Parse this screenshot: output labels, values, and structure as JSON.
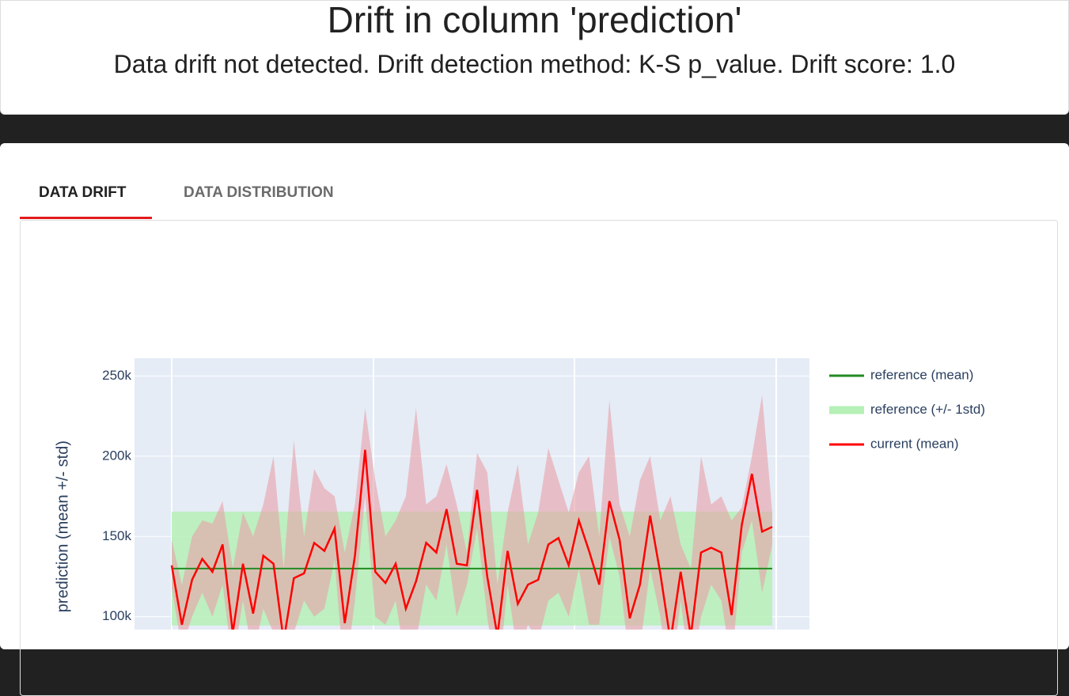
{
  "header": {
    "title": "Drift in column 'prediction'",
    "subtitle": "Data drift not detected. Drift detection method: K-S p_value. Drift score: 1.0"
  },
  "tabs": [
    "DATA DRIFT",
    "DATA DISTRIBUTION"
  ],
  "chart_data": {
    "type": "line",
    "y_label": "prediction (mean +/- std)",
    "categories": [
      null,
      null,
      null,
      null,
      null,
      null,
      null,
      null,
      null,
      null,
      null,
      null,
      null,
      null,
      null,
      null,
      null,
      null,
      null,
      null,
      null,
      null,
      null,
      null,
      null,
      null,
      null,
      null,
      null,
      null,
      null,
      null,
      null,
      null,
      null,
      null,
      null,
      null,
      null,
      null,
      null,
      null,
      null,
      null,
      null,
      null,
      null,
      null,
      null,
      null,
      null,
      null,
      null,
      null,
      null,
      null,
      null,
      null,
      null,
      null
    ],
    "ylim": [
      92000,
      261000
    ],
    "yticks": [
      {
        "value": 100000,
        "label": "100k"
      },
      {
        "value": 150000,
        "label": "150k"
      },
      {
        "value": 200000,
        "label": "200k"
      },
      {
        "value": 250000,
        "label": "250k"
      }
    ],
    "grid": true,
    "series": [
      {
        "name": "reference (mean)",
        "color": "#228b22",
        "values": [
          130000,
          130000,
          130000,
          130000,
          130000,
          130000,
          130000,
          130000,
          130000,
          130000,
          130000,
          130000,
          130000,
          130000,
          130000,
          130000,
          130000,
          130000,
          130000,
          130000,
          130000,
          130000,
          130000,
          130000,
          130000,
          130000,
          130000,
          130000,
          130000,
          130000,
          130000,
          130000,
          130000,
          130000,
          130000,
          130000,
          130000,
          130000,
          130000,
          130000,
          130000,
          130000,
          130000,
          130000,
          130000,
          130000,
          130000,
          130000,
          130000,
          130000,
          130000,
          130000,
          130000,
          130000,
          130000,
          130000,
          130000,
          130000,
          130000,
          130000
        ]
      },
      {
        "name": "reference (+/- 1std)",
        "color": "#b6f0b6",
        "upper": [
          165500,
          165500,
          165500,
          165500,
          165500,
          165500,
          165500,
          165500,
          165500,
          165500,
          165500,
          165500,
          165500,
          165500,
          165500,
          165500,
          165500,
          165500,
          165500,
          165500,
          165500,
          165500,
          165500,
          165500,
          165500,
          165500,
          165500,
          165500,
          165500,
          165500,
          165500,
          165500,
          165500,
          165500,
          165500,
          165500,
          165500,
          165500,
          165500,
          165500,
          165500,
          165500,
          165500,
          165500,
          165500,
          165500,
          165500,
          165500,
          165500,
          165500,
          165500,
          165500,
          165500,
          165500,
          165500,
          165500,
          165500,
          165500,
          165500,
          165500
        ],
        "lower": [
          94500,
          94500,
          94500,
          94500,
          94500,
          94500,
          94500,
          94500,
          94500,
          94500,
          94500,
          94500,
          94500,
          94500,
          94500,
          94500,
          94500,
          94500,
          94500,
          94500,
          94500,
          94500,
          94500,
          94500,
          94500,
          94500,
          94500,
          94500,
          94500,
          94500,
          94500,
          94500,
          94500,
          94500,
          94500,
          94500,
          94500,
          94500,
          94500,
          94500,
          94500,
          94500,
          94500,
          94500,
          94500,
          94500,
          94500,
          94500,
          94500,
          94500,
          94500,
          94500,
          94500,
          94500,
          94500,
          94500,
          94500,
          94500,
          94500,
          94500
        ]
      },
      {
        "name": "current (mean)",
        "color": "#ff0000",
        "values": [
          132000,
          95000,
          123000,
          136000,
          128000,
          145000,
          90000,
          133000,
          102000,
          138000,
          133000,
          85000,
          124000,
          127000,
          146000,
          141000,
          155000,
          96000,
          138000,
          204000,
          128000,
          121000,
          133000,
          105000,
          122000,
          146000,
          140000,
          167000,
          133000,
          132000,
          179000,
          125000,
          88000,
          141000,
          108000,
          120000,
          123000,
          145000,
          149000,
          132000,
          160000,
          141000,
          120000,
          172000,
          148000,
          99000,
          120000,
          163000,
          127000,
          85000,
          128000,
          88000,
          140000,
          143000,
          140000,
          101000,
          157000,
          189000,
          153000,
          156000
        ]
      }
    ],
    "current_band": {
      "color": "#e8a0a8",
      "upper": [
        148000,
        120000,
        150000,
        160000,
        158000,
        172000,
        130000,
        165000,
        150000,
        170000,
        200000,
        130000,
        210000,
        150000,
        192000,
        180000,
        175000,
        140000,
        170000,
        230000,
        185000,
        150000,
        160000,
        175000,
        230000,
        170000,
        175000,
        195000,
        170000,
        140000,
        202000,
        190000,
        120000,
        165000,
        195000,
        145000,
        165000,
        205000,
        185000,
        165000,
        190000,
        200000,
        150000,
        235000,
        170000,
        150000,
        185000,
        200000,
        160000,
        175000,
        145000,
        130000,
        200000,
        170000,
        175000,
        160000,
        168000,
        200000,
        238000,
        165000
      ],
      "lower": [
        118000,
        80000,
        100000,
        115000,
        100000,
        120000,
        70000,
        110000,
        75000,
        105000,
        90000,
        60000,
        90000,
        110000,
        100000,
        105000,
        135000,
        60000,
        110000,
        175000,
        100000,
        95000,
        110000,
        70000,
        85000,
        120000,
        110000,
        145000,
        100000,
        120000,
        155000,
        100000,
        55000,
        120000,
        75000,
        95000,
        85000,
        110000,
        115000,
        100000,
        130000,
        95000,
        95000,
        150000,
        125000,
        70000,
        80000,
        130000,
        100000,
        55000,
        110000,
        60000,
        100000,
        120000,
        110000,
        70000,
        140000,
        160000,
        115000,
        145000
      ]
    }
  }
}
